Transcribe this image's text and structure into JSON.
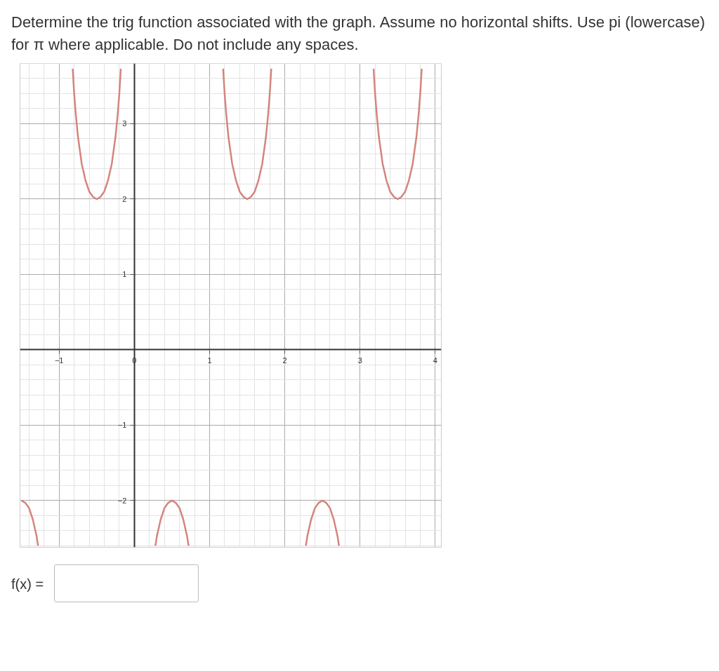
{
  "chart_data": {
    "type": "line",
    "title": "Determine the trig function associated with the graph.  Assume no horizontal shifts. Use pi (lowercase) for π where applicable.  Do not include any spaces.",
    "annotations": [
      "f(x) ="
    ],
    "x": [
      -1.5,
      -1.45,
      -1.4,
      -1.35,
      -1.3,
      -1.28,
      -1,
      -0.82,
      -0.8,
      -0.78,
      -0.75,
      -0.7,
      -0.65,
      -0.6,
      -0.55,
      -0.5,
      -0.45,
      -0.4,
      -0.35,
      -0.3,
      -0.25,
      -0.22,
      -0.2,
      -0.18,
      0,
      0.28,
      0.3,
      0.35,
      0.4,
      0.45,
      0.5,
      0.55,
      0.6,
      0.65,
      0.7,
      0.72,
      1,
      1.18,
      1.2,
      1.22,
      1.25,
      1.3,
      1.35,
      1.4,
      1.45,
      1.5,
      1.55,
      1.6,
      1.65,
      1.7,
      1.75,
      1.78,
      1.8,
      1.82,
      2,
      2.28,
      2.3,
      2.35,
      2.4,
      2.45,
      2.5,
      2.55,
      2.6,
      2.65,
      2.7,
      2.72,
      3,
      3.18,
      3.2,
      3.22,
      3.25,
      3.3,
      3.35,
      3.4,
      3.45,
      3.5,
      3.55,
      3.6,
      3.65,
      3.7,
      3.75,
      3.78,
      3.8,
      3.82
    ],
    "series": [
      {
        "color": "#d4857c",
        "values": [
          -2,
          -2.03,
          -2.1,
          -2.25,
          -2.47,
          -2.6,
          null,
          3.73,
          3.4,
          3.14,
          2.83,
          2.47,
          2.25,
          2.1,
          2.03,
          2,
          2.03,
          2.1,
          2.25,
          2.47,
          2.83,
          3.14,
          3.4,
          3.73,
          null,
          -2.6,
          -2.47,
          -2.25,
          -2.1,
          -2.03,
          -2,
          -2.03,
          -2.1,
          -2.25,
          -2.47,
          -2.6,
          null,
          3.73,
          3.4,
          3.14,
          2.83,
          2.47,
          2.25,
          2.1,
          2.03,
          2,
          2.03,
          2.1,
          2.25,
          2.47,
          2.83,
          3.14,
          3.4,
          3.73,
          null,
          -2.6,
          -2.47,
          -2.25,
          -2.1,
          -2.03,
          -2,
          -2.03,
          -2.1,
          -2.25,
          -2.47,
          -2.6,
          null,
          3.73,
          3.4,
          3.14,
          2.83,
          2.47,
          2.25,
          2.1,
          2.03,
          2,
          2.03,
          2.1,
          2.25,
          2.47,
          2.83,
          3.14,
          3.4,
          3.73
        ]
      }
    ],
    "xlim": [
      -1.52,
      4.08
    ],
    "ylim": [
      -2.62,
      3.8
    ],
    "xticks": [
      -1,
      0,
      1,
      2,
      3,
      4
    ],
    "yticks": [
      -2,
      -1,
      1,
      2,
      3
    ],
    "grid": true,
    "line_style": "solid"
  }
}
